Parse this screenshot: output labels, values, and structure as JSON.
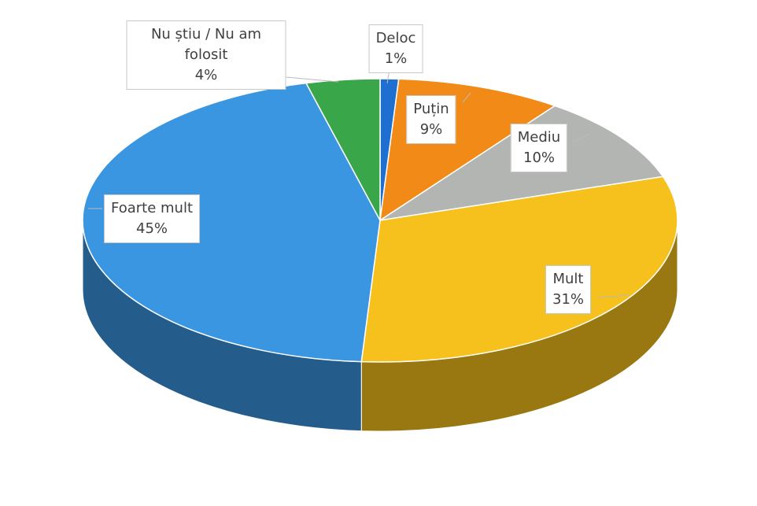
{
  "chart_data": {
    "type": "pie3d",
    "categories": [
      "Deloc",
      "Puțin",
      "Mediu",
      "Mult",
      "Foarte mult",
      "Nu știu / Nu am folosit"
    ],
    "values": [
      1,
      9,
      10,
      31,
      45,
      4
    ],
    "value_labels": [
      "1%",
      "9%",
      "10%",
      "31%",
      "45%",
      "4%"
    ],
    "colors": [
      "#1f6fd1",
      "#f28a17",
      "#b2b5b2",
      "#f6c11c",
      "#3a96e0",
      "#3aa64a"
    ]
  }
}
